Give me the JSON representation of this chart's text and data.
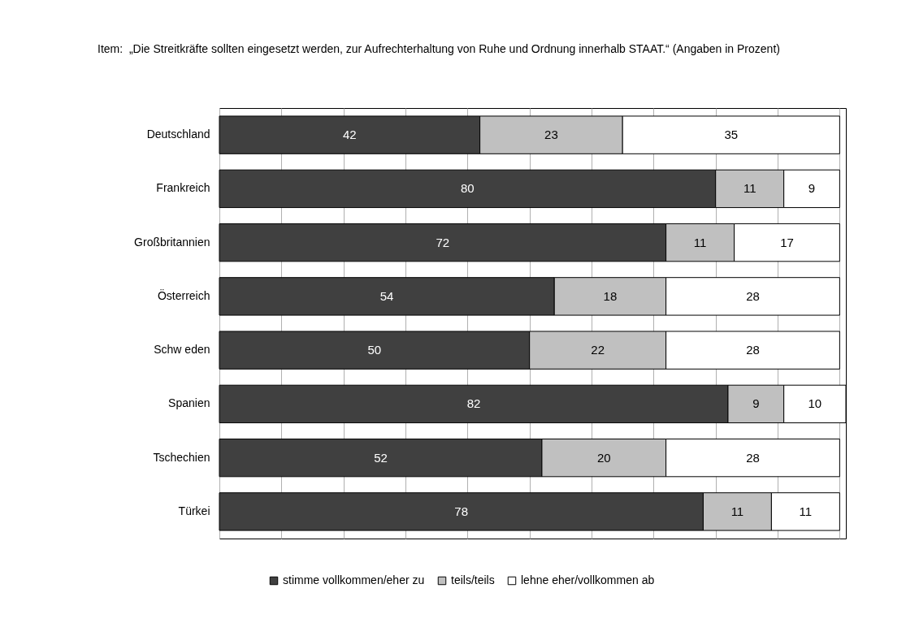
{
  "chart_data": {
    "type": "bar",
    "orientation": "horizontal",
    "stacked": true,
    "title": "Item:  „Die Streitkräfte sollten eingesetzt werden, zur Aufrechterhaltung von Ruhe und Ordnung innerhalb STAAT.“ (Angaben in Prozent)",
    "categories": [
      "Deutschland",
      "Frankreich",
      "Großbritannien",
      "Österreich",
      "Schw eden",
      "Spanien",
      "Tschechien",
      "Türkei"
    ],
    "series": [
      {
        "name": "stimme vollkommen/eher zu",
        "color": "#404040",
        "values": [
          42,
          80,
          72,
          54,
          50,
          82,
          52,
          78
        ]
      },
      {
        "name": "teils/teils",
        "color": "#c0c0c0",
        "values": [
          23,
          11,
          11,
          18,
          22,
          9,
          20,
          11
        ]
      },
      {
        "name": "lehne eher/vollkommen ab",
        "color": "#ffffff",
        "values": [
          35,
          9,
          17,
          28,
          28,
          10,
          28,
          11
        ]
      }
    ],
    "xlim": [
      0,
      101
    ],
    "xticks": [
      {
        "value": 0,
        "label": null
      },
      {
        "value": 10,
        "label": null
      },
      {
        "value": 20,
        "label": null
      },
      {
        "value": 30,
        "label": null
      },
      {
        "value": 40,
        "label": null
      },
      {
        "value": 50,
        "label": null
      },
      {
        "value": 60,
        "label": null
      },
      {
        "value": 70,
        "label": null
      },
      {
        "value": 80,
        "label": null
      },
      {
        "value": 90,
        "label": null
      },
      {
        "value": 100,
        "label": null
      }
    ],
    "grid": "x",
    "tick_labels": "y",
    "data_labels": true,
    "legend": "bottom"
  }
}
